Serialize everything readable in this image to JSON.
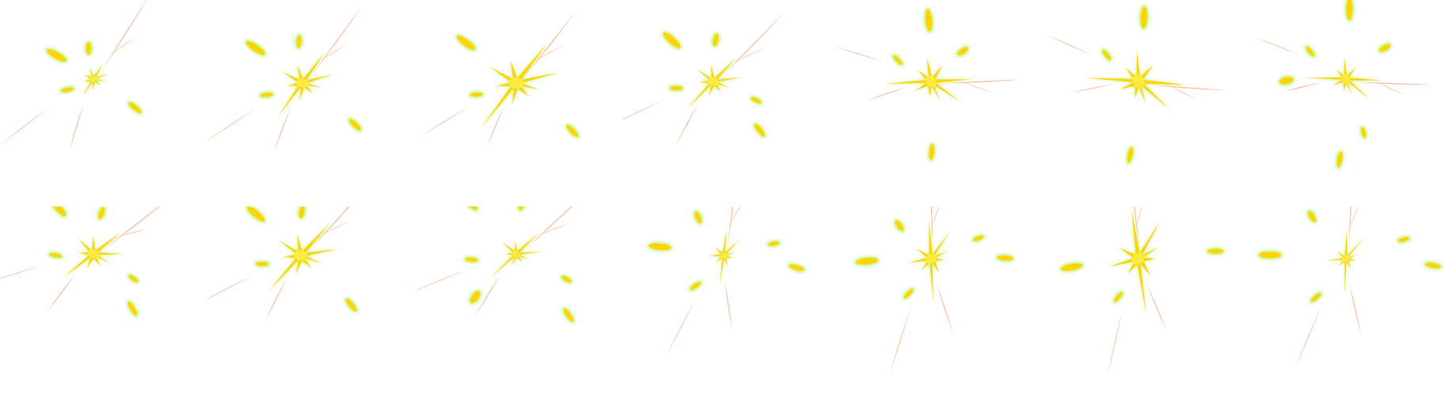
{
  "sprite_sheet": {
    "rows": 2,
    "columns": 7,
    "frame_count": 14,
    "background": "#ffffff",
    "colors": {
      "core": "#FFD400",
      "core_highlight": "#FFEA40",
      "glow": "#B8F26A",
      "streak": "#F6B08C"
    },
    "frames": [
      {
        "index": 0,
        "rotation": 0,
        "scale": 0.55,
        "spread": 0.75,
        "streaks": 1.0,
        "sparks": 4
      },
      {
        "index": 1,
        "rotation": 4,
        "scale": 0.85,
        "spread": 1.0,
        "streaks": 1.0,
        "sparks": 4
      },
      {
        "index": 2,
        "rotation": 6,
        "scale": 1.05,
        "spread": 1.1,
        "streaks": 0.95,
        "sparks": 3
      },
      {
        "index": 3,
        "rotation": 12,
        "scale": 0.75,
        "spread": 1.0,
        "streaks": 1.0,
        "sparks": 5
      },
      {
        "index": 4,
        "rotation": 55,
        "scale": 0.9,
        "spread": 1.05,
        "streaks": 0.9,
        "sparks": 4
      },
      {
        "index": 5,
        "rotation": 62,
        "scale": 1.0,
        "spread": 1.1,
        "streaks": 0.9,
        "sparks": 3
      },
      {
        "index": 6,
        "rotation": 60,
        "scale": 0.7,
        "spread": 1.2,
        "streaks": 0.85,
        "sparks": 6
      },
      {
        "index": 7,
        "rotation": 20,
        "scale": 0.8,
        "spread": 1.0,
        "streaks": 1.0,
        "sparks": 5
      },
      {
        "index": 8,
        "rotation": 10,
        "scale": 0.95,
        "spread": 1.05,
        "streaks": 1.0,
        "sparks": 4
      },
      {
        "index": 9,
        "rotation": 15,
        "scale": 0.6,
        "spread": 1.2,
        "streaks": 1.0,
        "sparks": 6
      },
      {
        "index": 10,
        "rotation": -25,
        "scale": 0.55,
        "spread": 1.1,
        "streaks": 1.0,
        "sparks": 5
      },
      {
        "index": 11,
        "rotation": -35,
        "scale": 0.8,
        "spread": 1.1,
        "streaks": 1.05,
        "sparks": 5
      },
      {
        "index": 12,
        "rotation": -40,
        "scale": 1.0,
        "spread": 1.15,
        "streaks": 1.05,
        "sparks": 3
      },
      {
        "index": 13,
        "rotation": -30,
        "scale": 0.55,
        "spread": 1.3,
        "streaks": 1.05,
        "sparks": 5
      }
    ]
  }
}
